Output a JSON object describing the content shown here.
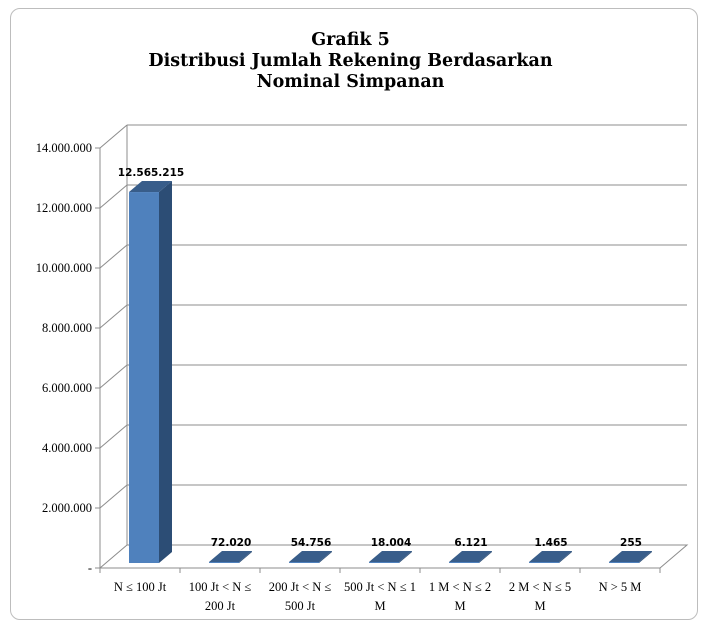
{
  "chart_data": {
    "type": "bar",
    "title_lines": [
      "Grafik 5",
      "Distribusi Jumlah Rekening Berdasarkan",
      "Nominal Simpanan"
    ],
    "categories": [
      [
        "N ≤ 100 Jt"
      ],
      [
        "100 Jt < N ≤",
        "200 Jt"
      ],
      [
        "200 Jt < N ≤",
        "500 Jt"
      ],
      [
        "500 Jt < N ≤ 1",
        "M"
      ],
      [
        "1 M < N ≤ 2",
        "M"
      ],
      [
        "2 M < N ≤ 5",
        "M"
      ],
      [
        "N > 5 M"
      ]
    ],
    "values": [
      12565215,
      72020,
      54756,
      18004,
      6121,
      1465,
      255
    ],
    "data_labels": [
      "12.565.215",
      "72.020",
      "54.756",
      "18.004",
      "6.121",
      "1.465",
      "255"
    ],
    "yticks": [
      "-",
      "2.000.000",
      "4.000.000",
      "6.000.000",
      "8.000.000",
      "10.000.000",
      "12.000.000",
      "14.000.000"
    ],
    "ylim": [
      0,
      14000000
    ],
    "grid": true,
    "three_d": true,
    "colors": {
      "bar_front": "#4f81bd",
      "bar_side": "#2c4d75",
      "bar_top": "#385d8a",
      "grid": "#8c8c8c",
      "floor": "#ffffff"
    }
  }
}
